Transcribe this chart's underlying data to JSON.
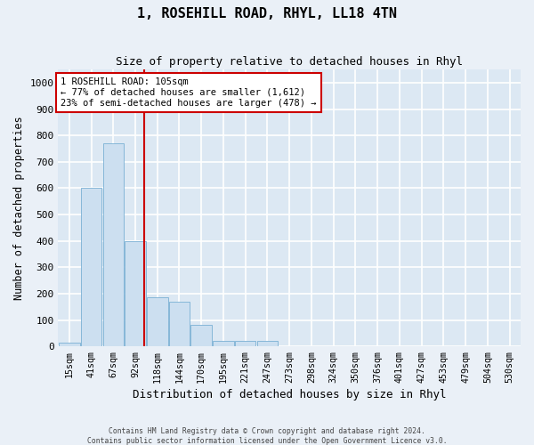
{
  "title": "1, ROSEHILL ROAD, RHYL, LL18 4TN",
  "subtitle": "Size of property relative to detached houses in Rhyl",
  "xlabel": "Distribution of detached houses by size in Rhyl",
  "ylabel": "Number of detached properties",
  "bar_color": "#ccdff0",
  "bar_edge_color": "#7ab0d4",
  "background_color": "#dce8f3",
  "grid_color": "#ffffff",
  "fig_bg_color": "#eaf0f7",
  "categories": [
    "15sqm",
    "41sqm",
    "67sqm",
    "92sqm",
    "118sqm",
    "144sqm",
    "170sqm",
    "195sqm",
    "221sqm",
    "247sqm",
    "273sqm",
    "298sqm",
    "324sqm",
    "350sqm",
    "376sqm",
    "401sqm",
    "427sqm",
    "453sqm",
    "479sqm",
    "504sqm",
    "530sqm"
  ],
  "values": [
    15,
    600,
    770,
    400,
    185,
    170,
    80,
    20,
    20,
    20,
    0,
    0,
    0,
    0,
    0,
    0,
    0,
    0,
    0,
    0,
    0
  ],
  "ylim": [
    0,
    1050
  ],
  "yticks": [
    0,
    100,
    200,
    300,
    400,
    500,
    600,
    700,
    800,
    900,
    1000
  ],
  "red_line_x": 3.42,
  "annotation_line1": "1 ROSEHILL ROAD: 105sqm",
  "annotation_line2": "← 77% of detached houses are smaller (1,612)",
  "annotation_line3": "23% of semi-detached houses are larger (478) →",
  "annotation_color": "#cc0000",
  "footer_line1": "Contains HM Land Registry data © Crown copyright and database right 2024.",
  "footer_line2": "Contains public sector information licensed under the Open Government Licence v3.0."
}
